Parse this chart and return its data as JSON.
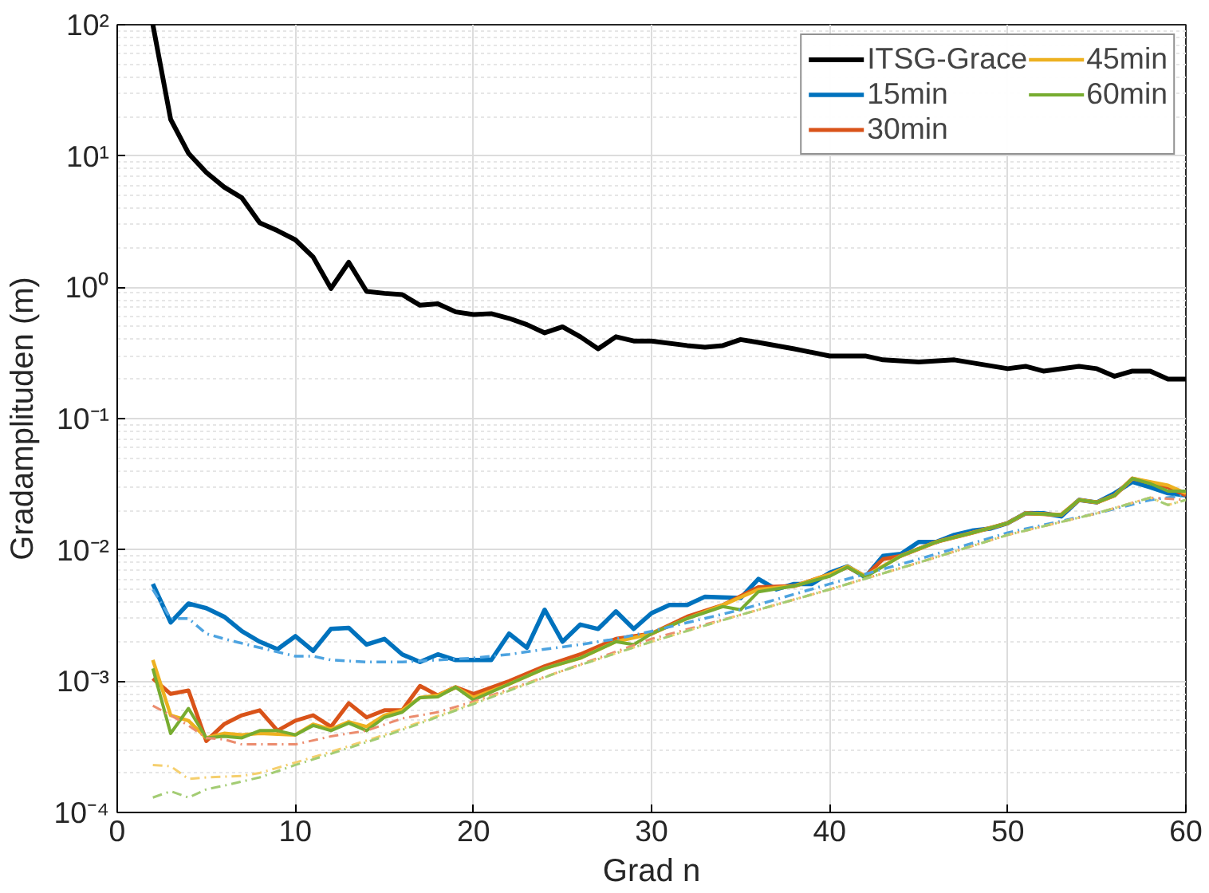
{
  "chart_data": {
    "type": "line",
    "xlabel": "Grad n",
    "ylabel": "Gradamplituden (m)",
    "xlim": [
      0,
      60
    ],
    "xticks": [
      0,
      10,
      20,
      30,
      40,
      50,
      60
    ],
    "ylim": [
      0.0001,
      100
    ],
    "yticks": [
      {
        "value": 0.0001,
        "label": "10⁻⁴"
      },
      {
        "value": 0.001,
        "label": "10⁻³"
      },
      {
        "value": 0.01,
        "label": "10⁻²"
      },
      {
        "value": 0.1,
        "label": "10⁻¹"
      },
      {
        "value": 1,
        "label": "10⁰"
      },
      {
        "value": 10,
        "label": "10¹"
      },
      {
        "value": 100,
        "label": "10²"
      }
    ],
    "log": "y",
    "grid": true,
    "legend": "top right",
    "marker": "none",
    "series": [
      {
        "name": "ITSG-Grace",
        "color": "#000000",
        "line_style": "solid",
        "x": [
          2,
          3,
          4,
          5,
          6,
          7,
          8,
          9,
          10,
          11,
          12,
          13,
          14,
          15,
          16,
          17,
          18,
          19,
          20,
          21,
          22,
          23,
          24,
          25,
          26,
          27,
          28,
          29,
          30,
          32,
          33,
          34,
          35,
          36,
          38,
          40,
          42,
          43,
          45,
          47,
          50,
          51,
          52,
          54,
          55,
          56,
          57,
          58,
          59,
          60
        ],
        "values": [
          100,
          19,
          10.5,
          7.5,
          5.8,
          4.8,
          3.1,
          2.7,
          2.3,
          1.7,
          0.98,
          1.55,
          0.93,
          0.9,
          0.88,
          0.73,
          0.75,
          0.65,
          0.62,
          0.63,
          0.58,
          0.52,
          0.45,
          0.5,
          0.42,
          0.34,
          0.42,
          0.39,
          0.39,
          0.36,
          0.35,
          0.36,
          0.4,
          0.38,
          0.34,
          0.3,
          0.3,
          0.28,
          0.27,
          0.28,
          0.24,
          0.25,
          0.23,
          0.25,
          0.24,
          0.21,
          0.23,
          0.23,
          0.2,
          0.2
        ]
      },
      {
        "name": "15min",
        "color": "#0072bd",
        "line_style": "solid",
        "x": [
          2,
          3,
          4,
          5,
          6,
          7,
          8,
          9,
          10,
          11,
          12,
          13,
          14,
          15,
          16,
          17,
          18,
          19,
          21,
          22,
          23,
          24,
          25,
          26,
          27,
          28,
          29,
          30,
          31,
          32,
          33,
          35,
          36,
          37,
          38,
          39,
          40,
          41,
          42,
          43,
          44,
          45,
          46,
          47,
          48,
          49,
          50,
          51,
          52,
          53,
          54,
          55,
          56,
          57,
          58,
          59,
          60
        ],
        "values": [
          0.0055,
          0.0028,
          0.0039,
          0.0036,
          0.0031,
          0.0024,
          0.002,
          0.00175,
          0.0022,
          0.0017,
          0.0025,
          0.00255,
          0.0019,
          0.0021,
          0.0016,
          0.0014,
          0.0016,
          0.00145,
          0.00145,
          0.0023,
          0.0018,
          0.0035,
          0.002,
          0.0027,
          0.0025,
          0.0034,
          0.0025,
          0.0033,
          0.0038,
          0.0038,
          0.0044,
          0.0043,
          0.006,
          0.005,
          0.0055,
          0.0055,
          0.0067,
          0.0075,
          0.0062,
          0.009,
          0.0093,
          0.0115,
          0.0115,
          0.013,
          0.014,
          0.0145,
          0.016,
          0.019,
          0.019,
          0.018,
          0.024,
          0.023,
          0.027,
          0.033,
          0.03,
          0.027,
          0.026
        ]
      },
      {
        "name": "30min",
        "color": "#d95319",
        "line_style": "solid",
        "x": [
          2,
          3,
          4,
          5,
          6,
          7,
          8,
          9,
          10,
          11,
          12,
          13,
          14,
          15,
          16,
          17,
          18,
          19,
          20,
          22,
          24,
          26,
          28,
          30,
          32,
          34,
          36,
          38,
          40,
          41,
          42,
          43,
          44,
          46,
          48,
          50,
          51,
          53,
          54,
          55,
          56,
          57,
          59,
          60
        ],
        "values": [
          0.00105,
          0.0008,
          0.00085,
          0.00035,
          0.00047,
          0.00055,
          0.0006,
          0.00042,
          0.0005,
          0.00055,
          0.00045,
          0.00068,
          0.00053,
          0.0006,
          0.0006,
          0.00092,
          0.00078,
          0.0009,
          0.0008,
          0.001,
          0.0013,
          0.0016,
          0.0021,
          0.0023,
          0.0031,
          0.0038,
          0.0052,
          0.0053,
          0.0065,
          0.0074,
          0.0063,
          0.0085,
          0.009,
          0.0115,
          0.0135,
          0.016,
          0.019,
          0.0185,
          0.024,
          0.023,
          0.026,
          0.035,
          0.03,
          0.026
        ]
      },
      {
        "name": "45min",
        "color": "#edb120",
        "line_style": "solid",
        "x": [
          2,
          3,
          4,
          5,
          6,
          7,
          8,
          10,
          11,
          12,
          13,
          14,
          15,
          16,
          17,
          18,
          19,
          20,
          22,
          24,
          26,
          28,
          30,
          32,
          34,
          36,
          38,
          40,
          41,
          42,
          44,
          46,
          48,
          50,
          51,
          53,
          54,
          55,
          56,
          57,
          59,
          60
        ],
        "values": [
          0.00145,
          0.00055,
          0.0005,
          0.00037,
          0.0004,
          0.00039,
          0.0004,
          0.00039,
          0.00047,
          0.00043,
          0.00049,
          0.00045,
          0.00055,
          0.0006,
          0.00075,
          0.00078,
          0.0009,
          0.00075,
          0.00095,
          0.00125,
          0.0015,
          0.002,
          0.0023,
          0.003,
          0.0038,
          0.005,
          0.0053,
          0.0065,
          0.0075,
          0.0063,
          0.009,
          0.0115,
          0.0135,
          0.016,
          0.019,
          0.0185,
          0.024,
          0.023,
          0.026,
          0.035,
          0.031,
          0.027
        ]
      },
      {
        "name": "60min",
        "color": "#77ac30",
        "line_style": "solid",
        "x": [
          2,
          3,
          4,
          5,
          6,
          7,
          8,
          9,
          10,
          11,
          12,
          13,
          14,
          15,
          16,
          17,
          18,
          19,
          20,
          22,
          24,
          26,
          28,
          29,
          30,
          32,
          34,
          35,
          36,
          38,
          40,
          41,
          42,
          44,
          46,
          48,
          50,
          51,
          53,
          54,
          55,
          56,
          57,
          58,
          59,
          60
        ],
        "values": [
          0.00125,
          0.0004,
          0.00062,
          0.00037,
          0.00038,
          0.00037,
          0.00042,
          0.00042,
          0.00039,
          0.00046,
          0.00042,
          0.00048,
          0.00042,
          0.00053,
          0.00058,
          0.00075,
          0.00076,
          0.0009,
          0.00072,
          0.00095,
          0.00125,
          0.0015,
          0.002,
          0.0019,
          0.0023,
          0.003,
          0.0037,
          0.0035,
          0.0048,
          0.0053,
          0.0063,
          0.0074,
          0.0062,
          0.009,
          0.0115,
          0.0135,
          0.016,
          0.019,
          0.0185,
          0.024,
          0.023,
          0.026,
          0.035,
          0.032,
          0.028,
          0.028
        ]
      },
      {
        "color": "#4da3e0",
        "line_style": "dashed",
        "x": [
          2,
          3,
          4,
          5,
          6,
          8,
          10,
          11,
          12,
          14,
          16,
          18,
          20,
          22,
          24,
          26,
          28,
          30,
          35,
          40,
          45,
          50,
          55,
          58,
          60
        ],
        "values": [
          0.005,
          0.003,
          0.003,
          0.0023,
          0.0021,
          0.0018,
          0.00155,
          0.00155,
          0.00145,
          0.0014,
          0.0014,
          0.00145,
          0.0015,
          0.0016,
          0.00175,
          0.0019,
          0.0021,
          0.0024,
          0.0035,
          0.0055,
          0.0085,
          0.0135,
          0.019,
          0.024,
          0.026
        ]
      },
      {
        "color": "#eb8c6e",
        "line_style": "dashed",
        "x": [
          2,
          3,
          4,
          5,
          6,
          7,
          8,
          10,
          12,
          14,
          16,
          18,
          20,
          25,
          30,
          35,
          40,
          45,
          50,
          55,
          58,
          60
        ],
        "values": [
          0.00065,
          0.00055,
          0.00046,
          0.00037,
          0.00036,
          0.00033,
          0.00033,
          0.00033,
          0.00038,
          0.00042,
          0.00052,
          0.00058,
          0.0007,
          0.0012,
          0.0021,
          0.0032,
          0.005,
          0.008,
          0.013,
          0.019,
          0.025,
          0.024
        ]
      },
      {
        "color": "#f5cf6e",
        "line_style": "dashed",
        "x": [
          2,
          3,
          4,
          5,
          7,
          8,
          10,
          12,
          15,
          20,
          25,
          30,
          35,
          40,
          45,
          50,
          55,
          58,
          59,
          60
        ],
        "values": [
          0.00023,
          0.000225,
          0.00018,
          0.000185,
          0.00019,
          0.0002,
          0.00024,
          0.00029,
          0.00039,
          0.00068,
          0.0012,
          0.002,
          0.0032,
          0.005,
          0.008,
          0.013,
          0.019,
          0.025,
          0.022,
          0.024
        ]
      },
      {
        "color": "#a3cc73",
        "line_style": "dashed",
        "x": [
          2,
          3,
          4,
          5,
          6,
          8,
          10,
          12,
          15,
          20,
          25,
          30,
          35,
          40,
          45,
          50,
          55,
          58,
          59,
          60
        ],
        "values": [
          0.00013,
          0.000145,
          0.00013,
          0.00015,
          0.00016,
          0.000185,
          0.00023,
          0.00028,
          0.00038,
          0.00067,
          0.0012,
          0.002,
          0.0032,
          0.005,
          0.008,
          0.013,
          0.019,
          0.025,
          0.022,
          0.024
        ]
      }
    ]
  }
}
